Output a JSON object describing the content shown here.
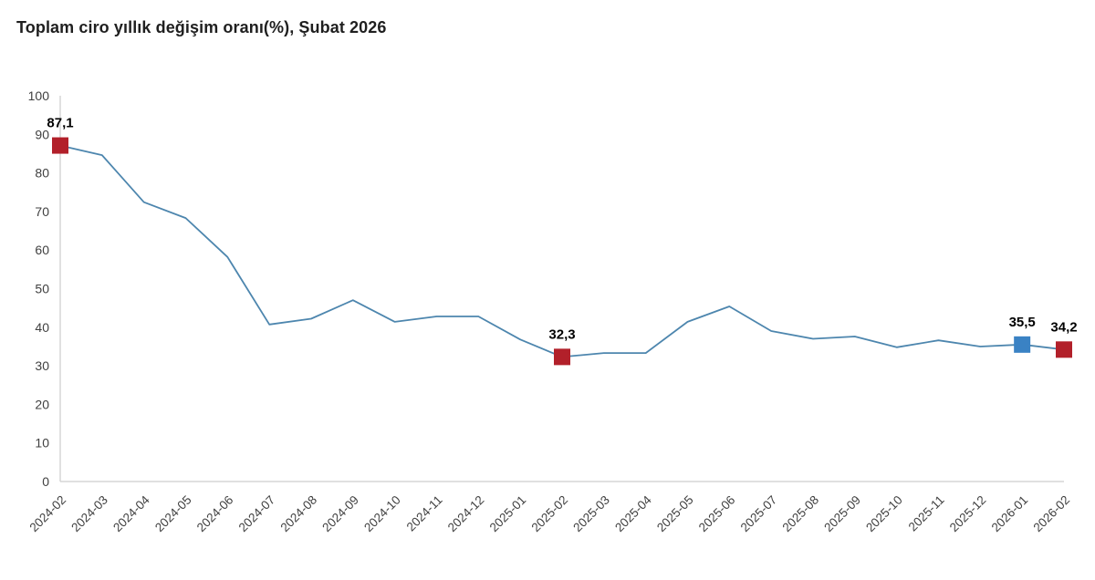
{
  "title": "Toplam ciro yıllık değişim oranı(%), Şubat 2026",
  "colors": {
    "line": "#4d86ae",
    "marker_red": "#b2202a",
    "marker_blue": "#3a82c4",
    "axis_line": "#d6d6d6",
    "tick_text": "#404040",
    "title_text": "#1f1f1f",
    "value_label_text": "#000000",
    "background": "#ffffff"
  },
  "chart_data": {
    "type": "line",
    "title": "Toplam ciro yıllık değişim oranı(%), Şubat 2026",
    "xlabel": "",
    "ylabel": "",
    "ylim": [
      0,
      100
    ],
    "y_ticks": [
      0,
      10,
      20,
      30,
      40,
      50,
      60,
      70,
      80,
      90,
      100
    ],
    "grid": false,
    "legend": false,
    "x_tick_rotation": -45,
    "x": [
      "2024-02",
      "2024-03",
      "2024-04",
      "2024-05",
      "2024-06",
      "2024-07",
      "2024-08",
      "2024-09",
      "2024-10",
      "2024-11",
      "2024-12",
      "2025-01",
      "2025-02",
      "2025-03",
      "2025-04",
      "2025-05",
      "2025-06",
      "2025-07",
      "2025-08",
      "2025-09",
      "2025-10",
      "2025-11",
      "2025-12",
      "2026-01",
      "2026-02"
    ],
    "values": [
      87.1,
      84.6,
      72.4,
      68.3,
      58.2,
      40.7,
      42.2,
      47.0,
      41.4,
      42.8,
      42.8,
      36.8,
      32.3,
      33.3,
      33.3,
      41.4,
      45.4,
      39.0,
      37.0,
      37.6,
      34.8,
      36.6,
      35.0,
      35.5,
      34.2
    ],
    "annotations": [
      {
        "month": "2024-02",
        "label": "87,1",
        "marker": "red"
      },
      {
        "month": "2025-02",
        "label": "32,3",
        "marker": "red"
      },
      {
        "month": "2026-01",
        "label": "35,5",
        "marker": "blue"
      },
      {
        "month": "2026-02",
        "label": "34,2",
        "marker": "red"
      }
    ]
  }
}
